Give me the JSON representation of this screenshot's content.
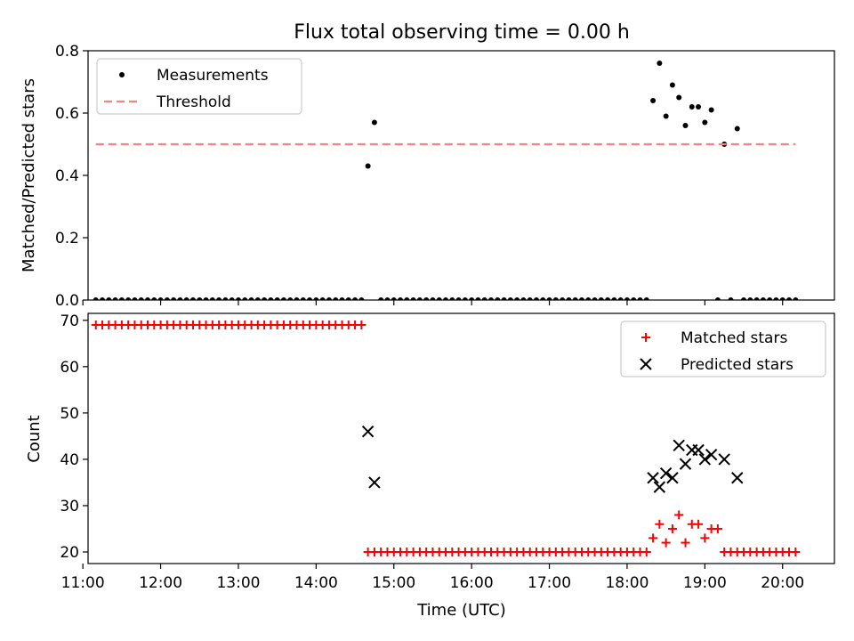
{
  "chart_data": [
    {
      "type": "scatter",
      "title": "Flux total observing time = 0.00 h",
      "xlabel": "",
      "ylabel": "Matched/Predicted stars",
      "xlim": [
        "11:04",
        "20:40"
      ],
      "ylim": [
        0,
        0.8
      ],
      "yticks": [
        0.0,
        0.2,
        0.4,
        0.6,
        0.8
      ],
      "ytick_labels": [
        "0.0",
        "0.2",
        "0.4",
        "0.6",
        "0.8"
      ],
      "legend_position": "upper left",
      "series": [
        {
          "name": "Measurements",
          "marker": "dot",
          "color": "#000000",
          "points": [
            [
              "11:10",
              0
            ],
            [
              "11:15",
              0
            ],
            [
              "11:20",
              0
            ],
            [
              "11:25",
              0
            ],
            [
              "11:30",
              0
            ],
            [
              "11:35",
              0
            ],
            [
              "11:40",
              0
            ],
            [
              "11:45",
              0
            ],
            [
              "11:50",
              0
            ],
            [
              "11:55",
              0
            ],
            [
              "12:00",
              0
            ],
            [
              "12:05",
              0
            ],
            [
              "12:10",
              0
            ],
            [
              "12:15",
              0
            ],
            [
              "12:20",
              0
            ],
            [
              "12:25",
              0
            ],
            [
              "12:30",
              0
            ],
            [
              "12:35",
              0
            ],
            [
              "12:40",
              0
            ],
            [
              "12:45",
              0
            ],
            [
              "12:50",
              0
            ],
            [
              "12:55",
              0
            ],
            [
              "13:00",
              0
            ],
            [
              "13:05",
              0
            ],
            [
              "13:10",
              0
            ],
            [
              "13:15",
              0
            ],
            [
              "13:20",
              0
            ],
            [
              "13:25",
              0
            ],
            [
              "13:30",
              0
            ],
            [
              "13:35",
              0
            ],
            [
              "13:40",
              0
            ],
            [
              "13:45",
              0
            ],
            [
              "13:50",
              0
            ],
            [
              "13:55",
              0
            ],
            [
              "14:00",
              0
            ],
            [
              "14:05",
              0
            ],
            [
              "14:10",
              0
            ],
            [
              "14:15",
              0
            ],
            [
              "14:20",
              0
            ],
            [
              "14:25",
              0
            ],
            [
              "14:30",
              0
            ],
            [
              "14:35",
              0
            ],
            [
              "14:40",
              0.43
            ],
            [
              "14:45",
              0.57
            ],
            [
              "14:50",
              0
            ],
            [
              "14:55",
              0
            ],
            [
              "15:00",
              0
            ],
            [
              "15:05",
              0
            ],
            [
              "15:10",
              0
            ],
            [
              "15:15",
              0
            ],
            [
              "15:20",
              0
            ],
            [
              "15:25",
              0
            ],
            [
              "15:30",
              0
            ],
            [
              "15:35",
              0
            ],
            [
              "15:40",
              0
            ],
            [
              "15:45",
              0
            ],
            [
              "15:50",
              0
            ],
            [
              "15:55",
              0
            ],
            [
              "16:00",
              0
            ],
            [
              "16:05",
              0
            ],
            [
              "16:10",
              0
            ],
            [
              "16:15",
              0
            ],
            [
              "16:20",
              0
            ],
            [
              "16:25",
              0
            ],
            [
              "16:30",
              0
            ],
            [
              "16:35",
              0
            ],
            [
              "16:40",
              0
            ],
            [
              "16:45",
              0
            ],
            [
              "16:50",
              0
            ],
            [
              "16:55",
              0
            ],
            [
              "17:00",
              0
            ],
            [
              "17:05",
              0
            ],
            [
              "17:10",
              0
            ],
            [
              "17:15",
              0
            ],
            [
              "17:20",
              0
            ],
            [
              "17:25",
              0
            ],
            [
              "17:30",
              0
            ],
            [
              "17:35",
              0
            ],
            [
              "17:40",
              0
            ],
            [
              "17:45",
              0
            ],
            [
              "17:50",
              0
            ],
            [
              "17:55",
              0
            ],
            [
              "18:00",
              0
            ],
            [
              "18:05",
              0
            ],
            [
              "18:10",
              0
            ],
            [
              "18:15",
              0
            ],
            [
              "18:20",
              0.64
            ],
            [
              "18:25",
              0.76
            ],
            [
              "18:30",
              0.59
            ],
            [
              "18:35",
              0.69
            ],
            [
              "18:40",
              0.65
            ],
            [
              "18:45",
              0.56
            ],
            [
              "18:50",
              0.62
            ],
            [
              "18:55",
              0.62
            ],
            [
              "19:00",
              0.57
            ],
            [
              "19:05",
              0.61
            ],
            [
              "19:10",
              0
            ],
            [
              "19:15",
              0.5
            ],
            [
              "19:20",
              0
            ],
            [
              "19:25",
              0.55
            ],
            [
              "19:30",
              0
            ],
            [
              "19:35",
              0
            ],
            [
              "19:40",
              0
            ],
            [
              "19:45",
              0
            ],
            [
              "19:50",
              0
            ],
            [
              "19:55",
              0
            ],
            [
              "20:00",
              0
            ],
            [
              "20:05",
              0
            ],
            [
              "20:10",
              0
            ]
          ]
        },
        {
          "name": "Threshold",
          "style": "dashed",
          "color": "#ff7f7f",
          "points": [
            [
              "11:10",
              0.5
            ],
            [
              "20:10",
              0.5
            ]
          ]
        }
      ]
    },
    {
      "type": "scatter",
      "title": "",
      "xlabel": "Time (UTC)",
      "ylabel": "Count",
      "xlim": [
        "11:04",
        "20:40"
      ],
      "ylim": [
        17.5,
        71.5
      ],
      "yticks": [
        20,
        30,
        40,
        50,
        60,
        70
      ],
      "ytick_labels": [
        "20",
        "30",
        "40",
        "50",
        "60",
        "70"
      ],
      "xticks": [
        "11:00",
        "12:00",
        "13:00",
        "14:00",
        "15:00",
        "16:00",
        "17:00",
        "18:00",
        "19:00",
        "20:00"
      ],
      "xtick_labels": [
        "11:00",
        "12:00",
        "13:00",
        "14:00",
        "15:00",
        "16:00",
        "17:00",
        "18:00",
        "19:00",
        "20:00"
      ],
      "legend_position": "upper right",
      "series": [
        {
          "name": "Matched stars",
          "marker": "plus",
          "color": "#ff0000",
          "points": [
            [
              "11:10",
              69
            ],
            [
              "11:15",
              69
            ],
            [
              "11:20",
              69
            ],
            [
              "11:25",
              69
            ],
            [
              "11:30",
              69
            ],
            [
              "11:35",
              69
            ],
            [
              "11:40",
              69
            ],
            [
              "11:45",
              69
            ],
            [
              "11:50",
              69
            ],
            [
              "11:55",
              69
            ],
            [
              "12:00",
              69
            ],
            [
              "12:05",
              69
            ],
            [
              "12:10",
              69
            ],
            [
              "12:15",
              69
            ],
            [
              "12:20",
              69
            ],
            [
              "12:25",
              69
            ],
            [
              "12:30",
              69
            ],
            [
              "12:35",
              69
            ],
            [
              "12:40",
              69
            ],
            [
              "12:45",
              69
            ],
            [
              "12:50",
              69
            ],
            [
              "12:55",
              69
            ],
            [
              "13:00",
              69
            ],
            [
              "13:05",
              69
            ],
            [
              "13:10",
              69
            ],
            [
              "13:15",
              69
            ],
            [
              "13:20",
              69
            ],
            [
              "13:25",
              69
            ],
            [
              "13:30",
              69
            ],
            [
              "13:35",
              69
            ],
            [
              "13:40",
              69
            ],
            [
              "13:45",
              69
            ],
            [
              "13:50",
              69
            ],
            [
              "13:55",
              69
            ],
            [
              "14:00",
              69
            ],
            [
              "14:05",
              69
            ],
            [
              "14:10",
              69
            ],
            [
              "14:15",
              69
            ],
            [
              "14:20",
              69
            ],
            [
              "14:25",
              69
            ],
            [
              "14:30",
              69
            ],
            [
              "14:35",
              69
            ],
            [
              "14:40",
              20
            ],
            [
              "14:45",
              20
            ],
            [
              "14:50",
              20
            ],
            [
              "14:55",
              20
            ],
            [
              "15:00",
              20
            ],
            [
              "15:05",
              20
            ],
            [
              "15:10",
              20
            ],
            [
              "15:15",
              20
            ],
            [
              "15:20",
              20
            ],
            [
              "15:25",
              20
            ],
            [
              "15:30",
              20
            ],
            [
              "15:35",
              20
            ],
            [
              "15:40",
              20
            ],
            [
              "15:45",
              20
            ],
            [
              "15:50",
              20
            ],
            [
              "15:55",
              20
            ],
            [
              "16:00",
              20
            ],
            [
              "16:05",
              20
            ],
            [
              "16:10",
              20
            ],
            [
              "16:15",
              20
            ],
            [
              "16:20",
              20
            ],
            [
              "16:25",
              20
            ],
            [
              "16:30",
              20
            ],
            [
              "16:35",
              20
            ],
            [
              "16:40",
              20
            ],
            [
              "16:45",
              20
            ],
            [
              "16:50",
              20
            ],
            [
              "16:55",
              20
            ],
            [
              "17:00",
              20
            ],
            [
              "17:05",
              20
            ],
            [
              "17:10",
              20
            ],
            [
              "17:15",
              20
            ],
            [
              "17:20",
              20
            ],
            [
              "17:25",
              20
            ],
            [
              "17:30",
              20
            ],
            [
              "17:35",
              20
            ],
            [
              "17:40",
              20
            ],
            [
              "17:45",
              20
            ],
            [
              "17:50",
              20
            ],
            [
              "17:55",
              20
            ],
            [
              "18:00",
              20
            ],
            [
              "18:05",
              20
            ],
            [
              "18:10",
              20
            ],
            [
              "18:15",
              20
            ],
            [
              "18:20",
              23
            ],
            [
              "18:25",
              26
            ],
            [
              "18:30",
              22
            ],
            [
              "18:35",
              25
            ],
            [
              "18:40",
              28
            ],
            [
              "18:45",
              22
            ],
            [
              "18:50",
              26
            ],
            [
              "18:55",
              26
            ],
            [
              "19:00",
              23
            ],
            [
              "19:05",
              25
            ],
            [
              "19:10",
              25
            ],
            [
              "19:15",
              20
            ],
            [
              "19:20",
              20
            ],
            [
              "19:25",
              20
            ],
            [
              "19:30",
              20
            ],
            [
              "19:35",
              20
            ],
            [
              "19:40",
              20
            ],
            [
              "19:45",
              20
            ],
            [
              "19:50",
              20
            ],
            [
              "19:55",
              20
            ],
            [
              "20:00",
              20
            ],
            [
              "20:05",
              20
            ],
            [
              "20:10",
              20
            ]
          ]
        },
        {
          "name": "Predicted stars",
          "marker": "x",
          "color": "#000000",
          "points": [
            [
              "14:40",
              46
            ],
            [
              "14:45",
              35
            ],
            [
              "18:20",
              36
            ],
            [
              "18:25",
              34
            ],
            [
              "18:30",
              37
            ],
            [
              "18:35",
              36
            ],
            [
              "18:40",
              43
            ],
            [
              "18:45",
              39
            ],
            [
              "18:50",
              42
            ],
            [
              "18:55",
              42
            ],
            [
              "19:00",
              40
            ],
            [
              "19:05",
              41
            ],
            [
              "19:15",
              40
            ],
            [
              "19:25",
              36
            ]
          ]
        }
      ]
    }
  ]
}
